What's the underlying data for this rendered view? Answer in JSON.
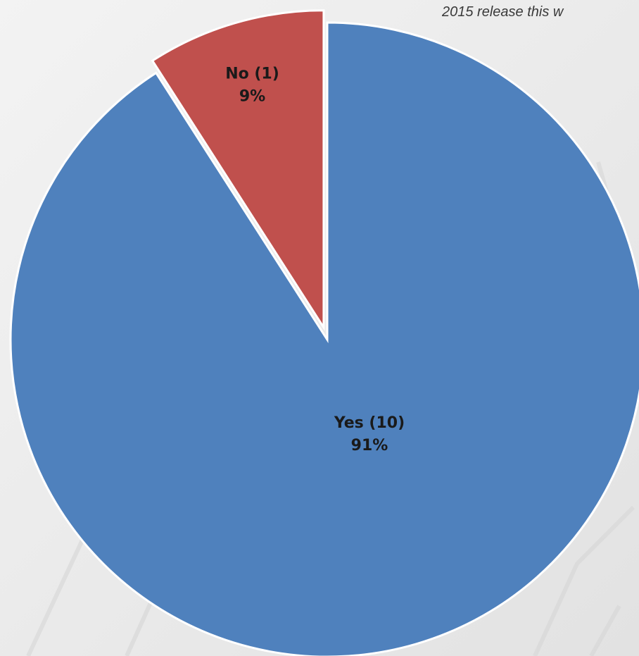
{
  "caption": {
    "text": "2015 release this w"
  },
  "chart_data": {
    "type": "pie",
    "title": "",
    "start_angle_deg": 0,
    "direction": "clockwise",
    "slices": [
      {
        "name": "Yes",
        "count": 10,
        "percent": 91,
        "color": "#4f81bd",
        "label_line1": "Yes (10)",
        "label_line2": "91%"
      },
      {
        "name": "No",
        "count": 1,
        "percent": 9,
        "color": "#c0504d",
        "label_line1": "No (1)",
        "label_line2": "9%",
        "exploded": true
      }
    ],
    "legend": "none"
  }
}
